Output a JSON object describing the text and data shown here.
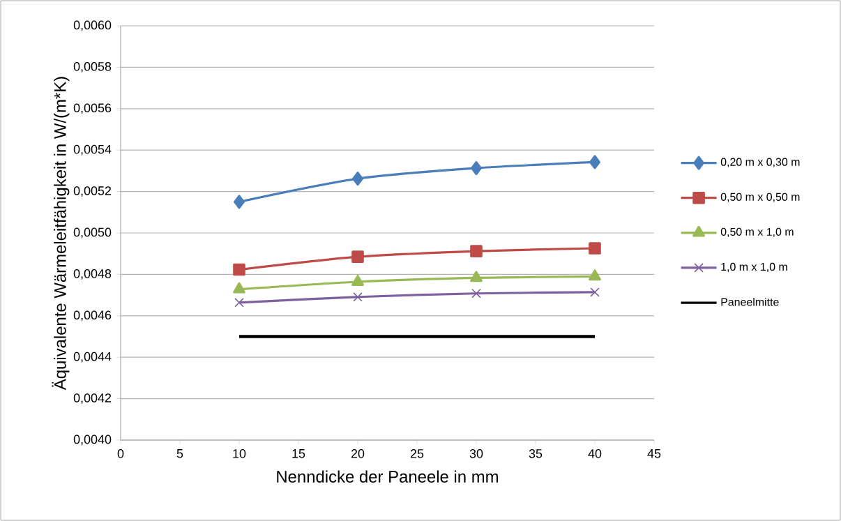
{
  "chart_data": {
    "type": "line",
    "xlabel": "Nenndicke der Paneele in mm",
    "ylabel": "Äquivalente Wärmeleitfähigkeit in W/(m*K)",
    "xlim": [
      0,
      45
    ],
    "xticks": [
      0,
      5,
      10,
      15,
      20,
      25,
      30,
      35,
      40,
      45
    ],
    "ylim": [
      0.004,
      0.006
    ],
    "yticks": [
      {
        "value": 0.004,
        "label": "0,0040"
      },
      {
        "value": 0.0042,
        "label": "0,0042"
      },
      {
        "value": 0.0044,
        "label": "0,0044"
      },
      {
        "value": 0.0046,
        "label": "0,0046"
      },
      {
        "value": 0.0048,
        "label": "0,0048"
      },
      {
        "value": 0.005,
        "label": "0,0050"
      },
      {
        "value": 0.0052,
        "label": "0,0052"
      },
      {
        "value": 0.0054,
        "label": "0,0054"
      },
      {
        "value": 0.0056,
        "label": "0,0056"
      },
      {
        "value": 0.0058,
        "label": "0,0058"
      },
      {
        "value": 0.006,
        "label": "0,0060"
      }
    ],
    "grid": "y",
    "legend": "right",
    "line_style": "solid",
    "x": [
      10,
      20,
      30,
      40
    ],
    "series": [
      {
        "name": "0,20 m x 0,30 m",
        "color": "#4a7ebb",
        "marker": "diamond",
        "values": [
          0.00515,
          0.005262,
          0.005313,
          0.005342
        ]
      },
      {
        "name": "0,50 m x 0,50 m",
        "color": "#be4b48",
        "marker": "square",
        "values": [
          0.004823,
          0.004885,
          0.004912,
          0.004926
        ]
      },
      {
        "name": "0,50 m x 1,0 m",
        "color": "#98b954",
        "marker": "triangle",
        "values": [
          0.004728,
          0.004764,
          0.004783,
          0.00479
        ]
      },
      {
        "name": "1,0 m x 1,0 m",
        "color": "#7d60a0",
        "marker": "cross",
        "values": [
          0.004664,
          0.004691,
          0.004708,
          0.004714
        ]
      },
      {
        "name": "Paneelmitte",
        "color": "#000000",
        "marker": "none",
        "values": [
          0.0045,
          0.0045,
          0.0045,
          0.0045
        ]
      }
    ]
  }
}
